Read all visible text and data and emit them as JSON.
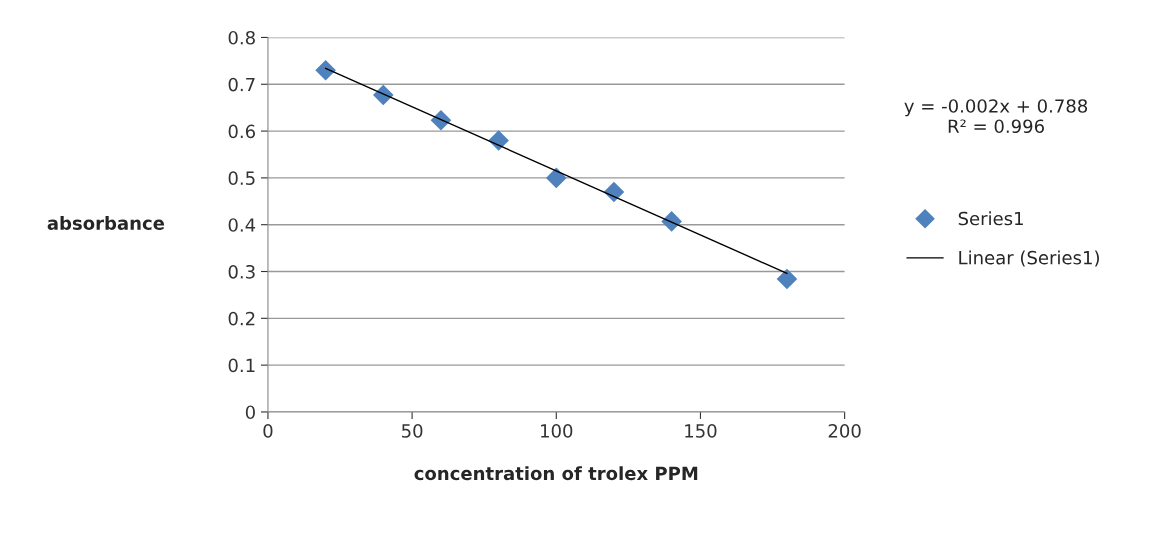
{
  "chart_data": {
    "type": "scatter",
    "xlabel": "concentration of trolex PPM",
    "ylabel": "absorbance",
    "series": [
      {
        "name": "Series1",
        "color": "#4f81bd",
        "marker": "diamond",
        "x": [
          20,
          40,
          60,
          80,
          100,
          120,
          140,
          180
        ],
        "values": [
          0.73,
          0.677,
          0.623,
          0.58,
          0.5,
          0.47,
          0.407,
          0.284
        ]
      },
      {
        "name": "Linear (Series1)",
        "type": "line",
        "color": "#000000",
        "marker": "none",
        "line_style": "solid",
        "x": [
          20,
          180
        ],
        "values": [
          0.734,
          0.296
        ]
      }
    ],
    "annotations": [
      "y = -0.002x + 0.788\nR² = 0.996"
    ],
    "xlim": [
      0,
      200
    ],
    "xticks": [
      0,
      50,
      100,
      150,
      200
    ],
    "ylim": [
      0,
      0.8
    ],
    "yticks": [
      0,
      0.1,
      0.2,
      0.3,
      0.4,
      0.5,
      0.6,
      0.7,
      0.8
    ],
    "grid": "y",
    "legend": "right"
  }
}
